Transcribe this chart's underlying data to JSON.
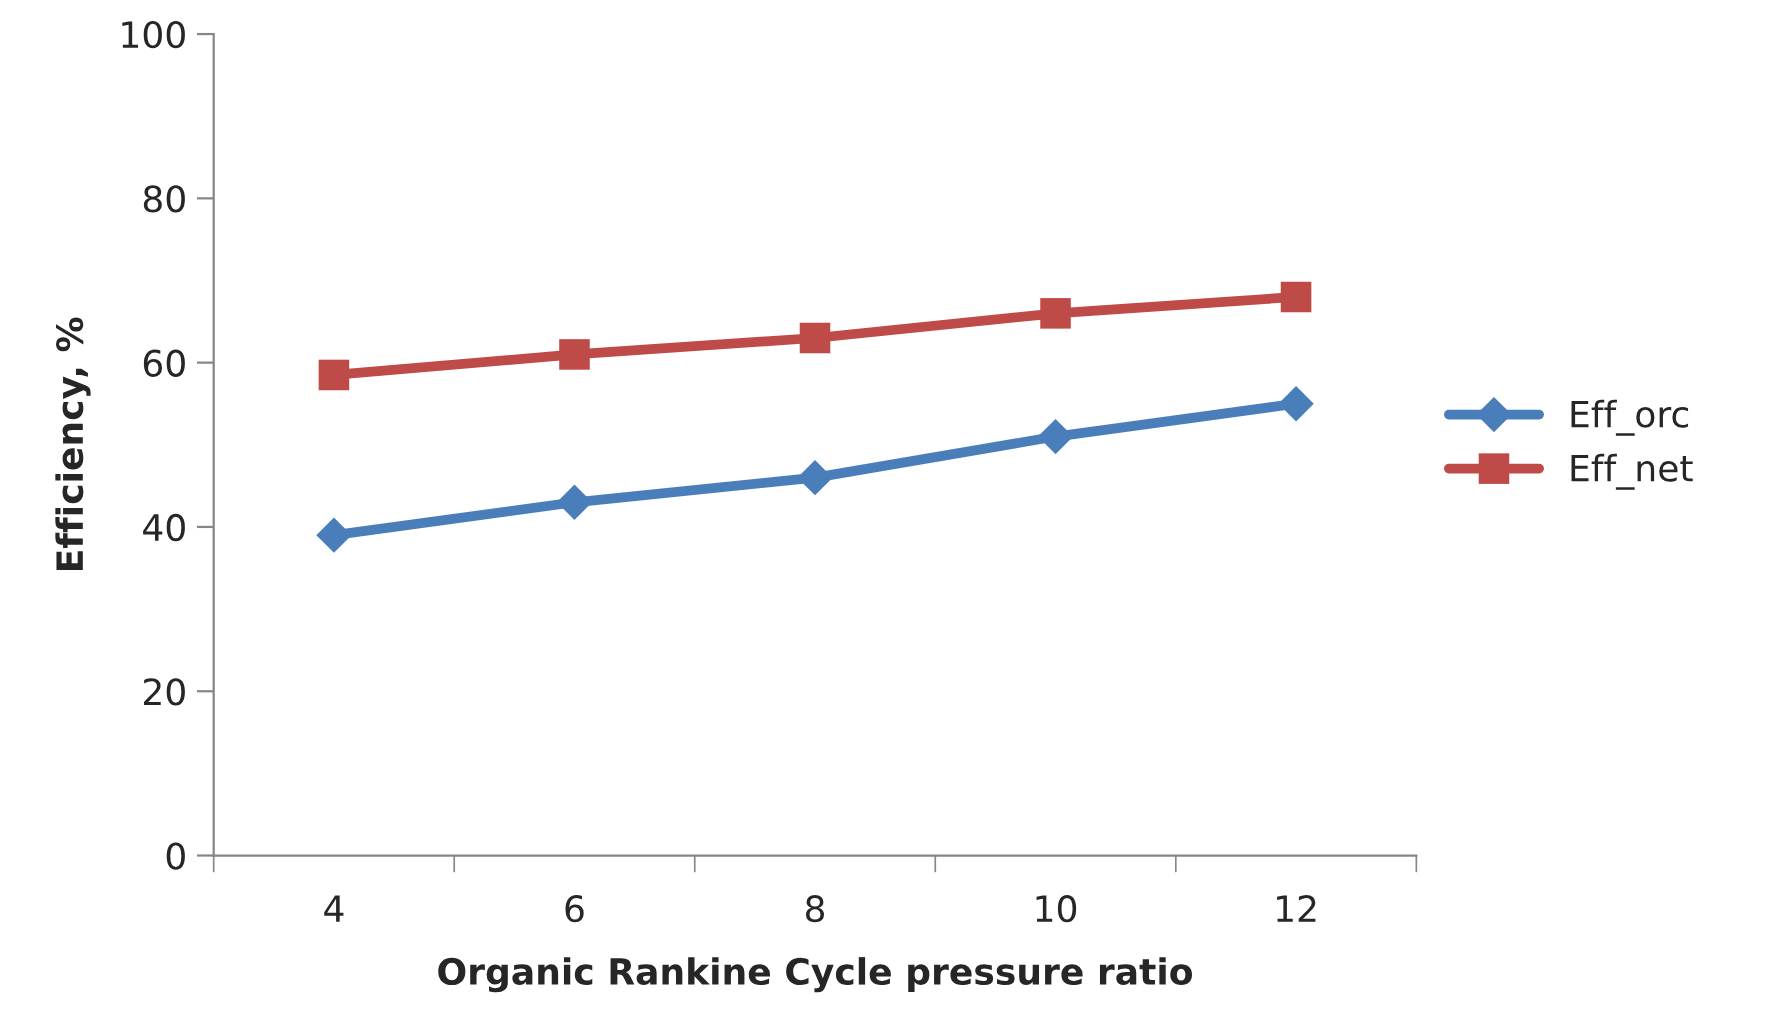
{
  "chart_data": {
    "type": "line",
    "xlabel": "Organic Rankine Cycle pressure ratio",
    "ylabel": "Efficiency, %",
    "categories": [
      "4",
      "6",
      "8",
      "10",
      "12"
    ],
    "series": [
      {
        "name": "Eff_orc",
        "color": "#4a7ebb",
        "marker": "diamond",
        "values": [
          39,
          43,
          46,
          51,
          55
        ]
      },
      {
        "name": "Eff_net",
        "color": "#be4b48",
        "marker": "square",
        "values": [
          58.5,
          61,
          63,
          66,
          68
        ]
      }
    ],
    "ylim": [
      0,
      100
    ],
    "yticks": [
      0,
      20,
      40,
      60,
      80,
      100
    ],
    "grid": false,
    "legend": "right",
    "line_style": "solid"
  }
}
